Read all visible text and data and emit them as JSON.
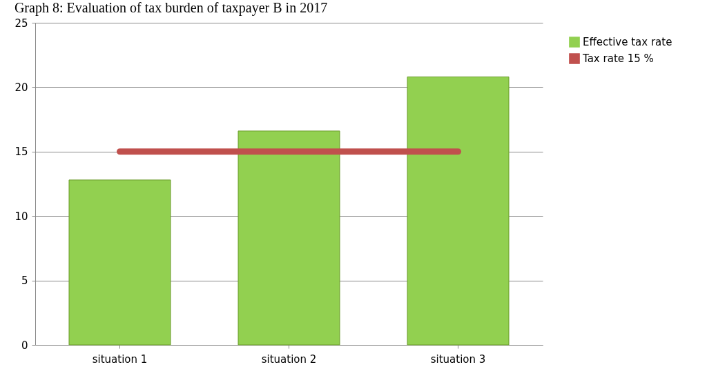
{
  "chart_data": {
    "type": "bar",
    "title": "Graph 8: Evaluation of tax burden of taxpayer B in 2017",
    "categories": [
      "situation 1",
      "situation 2",
      "situation 3"
    ],
    "series": [
      {
        "name": "Effective tax rate",
        "color": "#92d050",
        "values": [
          12.8,
          16.6,
          20.8
        ]
      },
      {
        "name": "Tax rate 15 %",
        "type": "line",
        "color": "#c0504d",
        "values": [
          15,
          15,
          15
        ]
      }
    ],
    "ylim": [
      0,
      25
    ],
    "yticks": [
      0,
      5,
      10,
      15,
      20,
      25
    ],
    "grid": "y",
    "legend": "right"
  }
}
